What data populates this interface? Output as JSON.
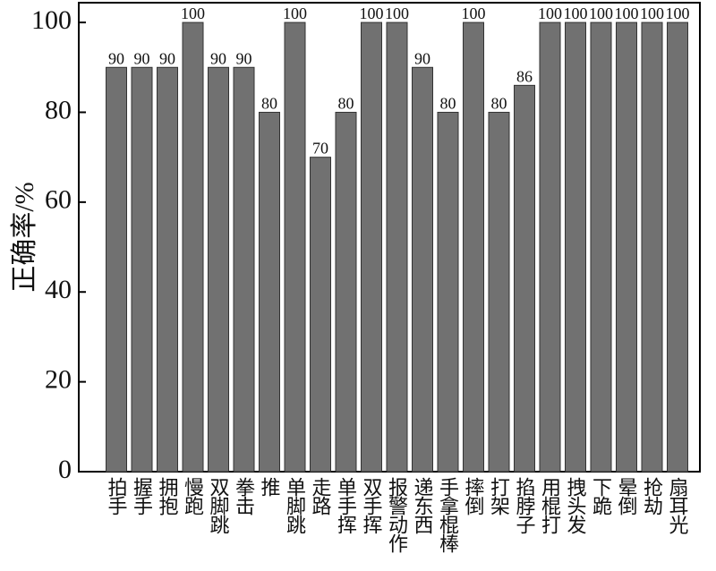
{
  "chart_data": {
    "type": "bar",
    "y_label": "正确率/%",
    "categories": [
      "拍手",
      "握手",
      "拥抱",
      "慢跑",
      "双脚跳",
      "拳击",
      "推",
      "单脚跳",
      "走路",
      "单手挥",
      "双手挥",
      "报警动作",
      "递东西",
      "手拿棍棒",
      "摔倒",
      "打架",
      "掐脖子",
      "用棍打",
      "拽头发",
      "下跪",
      "晕倒",
      "抢劫",
      "扇耳光"
    ],
    "values": [
      90,
      90,
      90,
      100,
      90,
      90,
      80,
      100,
      70,
      80,
      100,
      100,
      90,
      80,
      100,
      80,
      86,
      100,
      100,
      100,
      100,
      100,
      100
    ],
    "color": "#717171",
    "ylim": [
      0,
      104.4
    ],
    "yticks": [
      0,
      20,
      40,
      60,
      80,
      100
    ],
    "grid": false
  }
}
